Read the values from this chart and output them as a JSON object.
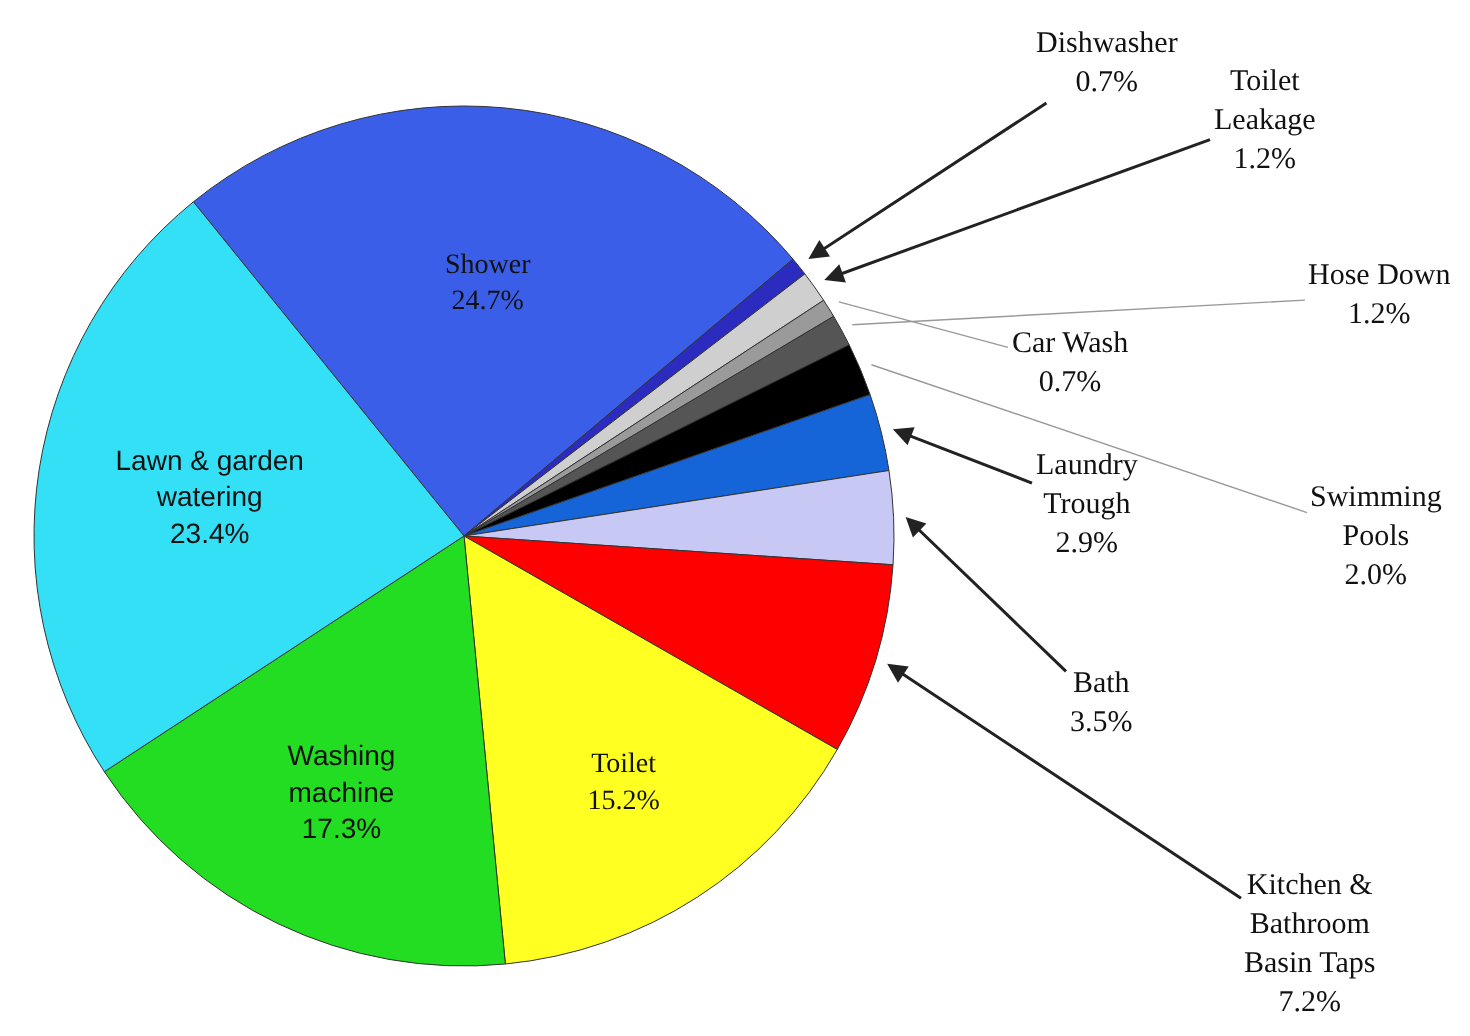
{
  "chart_data": {
    "type": "pie",
    "categories": [
      "Shower",
      "Dishwasher",
      "Toilet Leakage",
      "Car Wash",
      "Hose Down",
      "Swimming Pools",
      "Laundry Trough",
      "Bath",
      "Kitchen & Bathroom Basin Taps",
      "Toilet",
      "Washing machine",
      "Lawn & garden watering"
    ],
    "values": [
      24.7,
      0.7,
      1.2,
      0.7,
      1.2,
      2.0,
      2.9,
      3.5,
      7.2,
      15.2,
      17.3,
      23.4
    ],
    "value_labels": [
      "24.7%",
      "0.7%",
      "1.2%",
      "0.7%",
      "1.2%",
      "2.0%",
      "2.9%",
      "3.5%",
      "7.2%",
      "15.2%",
      "17.3%",
      "23.4%"
    ],
    "colors": [
      "#3a5ee8",
      "#2b2bc0",
      "#cfcfcf",
      "#9a9a9a",
      "#555555",
      "#000000",
      "#1565d8",
      "#c8c8f5",
      "#ff0000",
      "#ffff22",
      "#22dd22",
      "#33e0f5"
    ],
    "legend": false
  }
}
